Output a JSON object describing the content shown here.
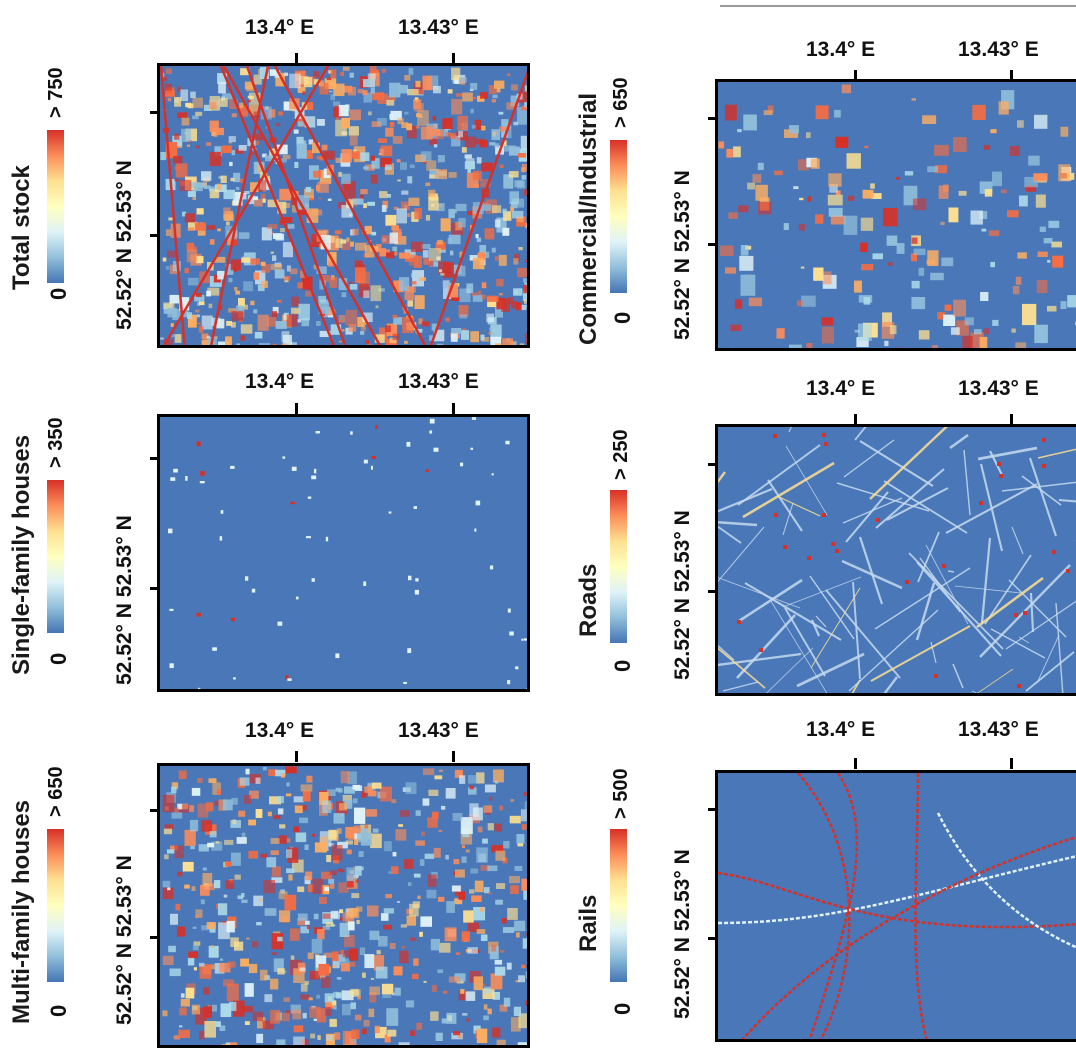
{
  "colorbar_colors": [
    "#4575b4",
    "#91bfdb",
    "#e0f3f8",
    "#ffffbf",
    "#fee090",
    "#fc8d59",
    "#d73027"
  ],
  "map_base_color": "#4a77b8",
  "panels": [
    {
      "id": "total-stock",
      "title": "Total stock",
      "max_label": "> 750",
      "min_label": "0",
      "lon_labels": [
        "13.4° E",
        "13.43° E"
      ],
      "lat_labels": [
        "52.53°",
        "52.52°"
      ],
      "lat_suffix": "N"
    },
    {
      "id": "commercial-industrial",
      "title": "Commercial/Industrial",
      "max_label": "> 650",
      "min_label": "0",
      "lon_labels": [
        "13.4° E",
        "13.43° E"
      ],
      "lat_labels": [
        "52.53°",
        "52.52°"
      ],
      "lat_suffix": "N"
    },
    {
      "id": "single-family-houses",
      "title": "Single-family houses",
      "max_label": "> 350",
      "min_label": "0",
      "lon_labels": [
        "13.4° E",
        "13.43° E"
      ],
      "lat_labels": [
        "52.53°",
        "52.52°"
      ],
      "lat_suffix": "N"
    },
    {
      "id": "roads",
      "title": "Roads",
      "max_label": "> 250",
      "min_label": "0",
      "lon_labels": [
        "13.4° E",
        "13.43° E"
      ],
      "lat_labels": [
        "52.53°",
        "52.52°"
      ],
      "lat_suffix": "N"
    },
    {
      "id": "multi-family-houses",
      "title": "Multi-family houses",
      "max_label": "> 650",
      "min_label": "0",
      "lon_labels": [
        "13.4° E",
        "13.43° E"
      ],
      "lat_labels": [
        "52.53°",
        "52.52°"
      ],
      "lat_suffix": "N"
    },
    {
      "id": "rails",
      "title": "Rails",
      "max_label": "> 500",
      "min_label": "0",
      "lon_labels": [
        "13.4° E",
        "13.43° E"
      ],
      "lat_labels": [
        "52.53°",
        "52.52°"
      ],
      "lat_suffix": "N"
    }
  ]
}
